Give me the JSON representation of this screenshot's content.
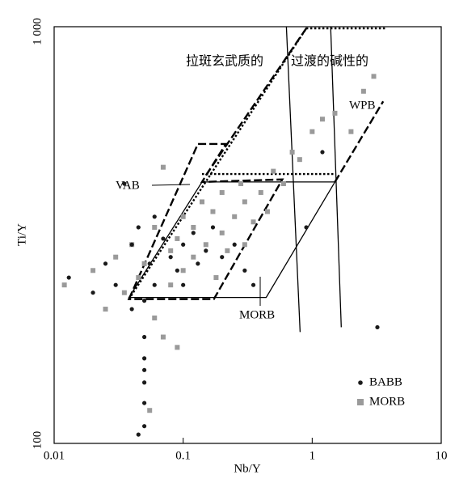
{
  "chart_data": {
    "type": "scatter",
    "x_label": "Nb/Y",
    "y_label": "Ti/Y",
    "xscale": "log",
    "yscale": "log",
    "xlim": [
      0.01,
      10
    ],
    "ylim": [
      100,
      1000
    ],
    "xticks": [
      0.01,
      0.1,
      1,
      10
    ],
    "yticks": [
      100,
      {
        "value": 1000,
        "label": "1 000"
      }
    ],
    "legend": "lower right",
    "series": [
      {
        "name": "MORB",
        "color": "#9a9a9a",
        "marker": "square",
        "x": [
          0.012,
          0.02,
          0.025,
          0.03,
          0.035,
          0.04,
          0.045,
          0.05,
          0.06,
          0.06,
          0.07,
          0.08,
          0.08,
          0.09,
          0.1,
          0.1,
          0.12,
          0.12,
          0.14,
          0.15,
          0.17,
          0.18,
          0.2,
          0.2,
          0.22,
          0.25,
          0.28,
          0.3,
          0.3,
          0.35,
          0.4,
          0.45,
          0.5,
          0.6,
          0.7,
          0.8,
          1.0,
          1.2,
          1.5,
          2.0,
          2.5,
          3.0,
          0.07,
          0.09,
          0.055
        ],
        "values": [
          240,
          260,
          210,
          280,
          230,
          300,
          250,
          270,
          330,
          200,
          460,
          290,
          240,
          310,
          350,
          260,
          330,
          280,
          380,
          300,
          360,
          250,
          400,
          320,
          290,
          350,
          420,
          380,
          300,
          340,
          400,
          360,
          450,
          420,
          500,
          480,
          560,
          600,
          620,
          560,
          700,
          760,
          180,
          170,
          120
        ]
      },
      {
        "name": "BABB",
        "color": "#1a1a1a",
        "marker": "circle",
        "x": [
          0.013,
          0.02,
          0.025,
          0.03,
          0.035,
          0.04,
          0.04,
          0.045,
          0.05,
          0.05,
          0.05,
          0.05,
          0.05,
          0.05,
          0.055,
          0.06,
          0.06,
          0.07,
          0.08,
          0.09,
          0.1,
          0.1,
          0.12,
          0.13,
          0.15,
          0.17,
          0.2,
          0.25,
          0.3,
          0.35,
          0.9,
          1.2,
          3.2,
          0.045,
          0.05
        ],
        "values": [
          250,
          230,
          270,
          240,
          420,
          300,
          210,
          330,
          220,
          180,
          160,
          140,
          125,
          110,
          270,
          350,
          240,
          310,
          280,
          260,
          300,
          240,
          320,
          270,
          290,
          330,
          280,
          300,
          260,
          240,
          330,
          500,
          190,
          105,
          150
        ]
      }
    ],
    "regions": [
      {
        "style": "solid",
        "closed": true,
        "points": [
          [
            0.038,
            224
          ],
          [
            0.14,
            424
          ],
          [
            1.5,
            424
          ],
          [
            0.44,
            224
          ]
        ]
      },
      {
        "style": "dashed",
        "closed": true,
        "points": [
          [
            0.038,
            222
          ],
          [
            0.13,
            523
          ],
          [
            0.214,
            523
          ],
          [
            0.14,
            424
          ],
          [
            0.587,
            430
          ],
          [
            0.173,
            222
          ]
        ]
      },
      {
        "style": "dotted",
        "closed": false,
        "points": [
          [
            0.038,
            222
          ],
          [
            0.9,
            991
          ],
          [
            3.8,
            991
          ]
        ]
      },
      {
        "style": "dotted",
        "closed": false,
        "points": [
          [
            0.14,
            443
          ],
          [
            1.5,
            443
          ]
        ]
      },
      {
        "style": "dashed",
        "closed": false,
        "points": [
          [
            0.15,
            440
          ],
          [
            0.9,
            991
          ]
        ]
      },
      {
        "style": "dashed",
        "closed": false,
        "points": [
          [
            1.5,
            424
          ],
          [
            3.55,
            662
          ]
        ]
      },
      {
        "style": "solid",
        "closed": false,
        "points": [
          [
            0.631,
            1000
          ],
          [
            0.806,
            185
          ]
        ]
      },
      {
        "style": "solid",
        "closed": false,
        "points": [
          [
            1.39,
            1000
          ],
          [
            1.68,
            190
          ]
        ]
      }
    ],
    "annotations": [
      "拉斑玄武质的",
      "过渡的碱性的",
      "VAB",
      "WPB",
      "MORB"
    ]
  }
}
